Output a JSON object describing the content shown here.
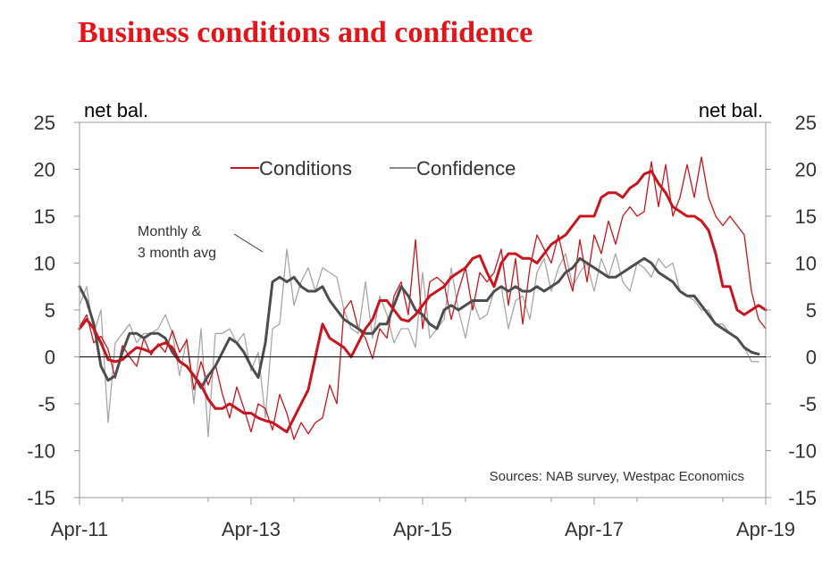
{
  "chart_data": {
    "type": "line",
    "title": "Business conditions and confidence",
    "ylabel_left": "net bal.",
    "ylabel_right": "net bal.",
    "ylim": [
      -15,
      25
    ],
    "yticks": [
      -15,
      -10,
      -5,
      0,
      5,
      10,
      15,
      20,
      25
    ],
    "xlim": [
      0,
      96
    ],
    "x_ticks": [
      {
        "label": "Apr-11",
        "x": 0
      },
      {
        "label": "Apr-13",
        "x": 24
      },
      {
        "label": "Apr-15",
        "x": 48
      },
      {
        "label": "Apr-17",
        "x": 72
      },
      {
        "label": "Apr-19",
        "x": 96
      }
    ],
    "legend": [
      "Conditions",
      "Confidence"
    ],
    "annotation": "Monthly & 3 month avg",
    "annotation_lines": [
      "Monthly &",
      "3 month avg"
    ],
    "source": "Sources: NAB survey, Westpac Economics",
    "colors": {
      "title": "#e3151a",
      "conditions": "#c8141c",
      "conditions_monthly": "#c8141c",
      "confidence": "#4d4d4d",
      "confidence_monthly": "#a6a6a6",
      "axis": "#888888",
      "text": "#333333"
    },
    "series": [
      {
        "name": "Conditions (monthly)",
        "color": "#c8141c",
        "values": [
          3.2,
          4.5,
          1.5,
          2.2,
          0.8,
          -2.3,
          1.2,
          0.0,
          -1.0,
          2.0,
          0.2,
          1.4,
          0.5,
          2.8,
          0.5,
          1.8,
          -3.5,
          -0.5,
          -3.0,
          -0.8,
          -4.0,
          -6.5,
          -3.2,
          -5.5,
          -8.0,
          -5.0,
          -5.5,
          -7.8,
          -4.0,
          -6.0,
          -8.8,
          -7.0,
          -8.2,
          -7.0,
          -6.5,
          -3.0,
          -5.0,
          5.0,
          6.0,
          3.0,
          2.0,
          -0.2,
          3.0,
          2.0,
          6.5,
          8.0,
          4.5,
          12.5,
          3.0,
          8.0,
          8.5,
          7.8,
          4.0,
          7.0,
          9.5,
          5.0,
          9.0,
          8.0,
          9.0,
          11.5,
          5.5,
          10.5,
          3.5,
          9.5,
          13.0,
          11.5,
          10.0,
          13.0,
          9.5,
          7.0,
          12.5,
          8.0,
          13.0,
          11.0,
          14.5,
          12.0,
          15.0,
          16.0,
          15.0,
          15.5,
          20.8,
          16.0,
          20.5,
          15.0,
          17.0,
          20.5,
          17.0,
          21.3,
          17.0,
          15.0,
          14.0,
          15.0,
          14.0,
          13.0,
          7.0,
          4.0,
          3.0
        ]
      },
      {
        "name": "Conditions",
        "color": "#c8141c",
        "values": [
          3.0,
          4.0,
          3.0,
          1.5,
          -0.3,
          -0.5,
          -0.3,
          0.4,
          1.0,
          0.8,
          0.5,
          1.2,
          1.5,
          1.0,
          -0.5,
          -1.0,
          -2.0,
          -3.0,
          -4.5,
          -5.5,
          -5.5,
          -5.0,
          -5.5,
          -6.0,
          -6.0,
          -6.5,
          -6.8,
          -7.0,
          -7.5,
          -8.0,
          -6.5,
          -5.0,
          -3.5,
          0.0,
          3.5,
          2.0,
          1.5,
          1.0,
          0.0,
          1.5,
          3.0,
          4.0,
          6.0,
          6.0,
          5.0,
          4.0,
          3.8,
          4.5,
          5.5,
          6.5,
          7.0,
          7.5,
          8.5,
          9.0,
          9.5,
          10.5,
          10.8,
          9.0,
          7.5,
          10.0,
          11.0,
          11.0,
          10.5,
          10.5,
          10.0,
          11.0,
          12.0,
          12.5,
          13.0,
          14.0,
          15.0,
          15.0,
          15.0,
          17.0,
          17.5,
          17.5,
          17.0,
          18.0,
          18.5,
          19.5,
          19.8,
          18.5,
          17.5,
          16.0,
          15.5,
          15.0,
          15.0,
          14.5,
          13.5,
          11.0,
          7.5,
          7.5,
          5.0,
          4.5,
          5.0,
          5.5,
          5.0
        ]
      },
      {
        "name": "Confidence (monthly)",
        "color": "#a6a6a6",
        "values": [
          5.5,
          7.5,
          2.5,
          5.0,
          -7.0,
          1.5,
          2.5,
          3.5,
          1.5,
          2.5,
          2.5,
          3.0,
          4.5,
          2.5,
          -2.0,
          2.0,
          -5.0,
          3.0,
          -8.5,
          2.5,
          2.5,
          3.0,
          1.5,
          2.5,
          -1.5,
          0.5,
          -6.5,
          3.0,
          3.5,
          11.5,
          5.5,
          8.0,
          9.5,
          7.0,
          9.5,
          9.0,
          8.5,
          5.0,
          3.0,
          2.5,
          8.0,
          2.0,
          6.5,
          4.5,
          1.5,
          3.0,
          3.0,
          1.0,
          9.0,
          2.0,
          3.0,
          4.0,
          9.5,
          5.0,
          2.0,
          6.0,
          4.0,
          4.5,
          7.0,
          7.5,
          3.0,
          6.0,
          6.5,
          4.0,
          9.0,
          10.5,
          7.0,
          9.5,
          11.0,
          7.5,
          9.0,
          10.0,
          7.0,
          10.5,
          8.5,
          11.0,
          8.0,
          7.0,
          10.0,
          9.5,
          8.5,
          10.5,
          9.5,
          10.0,
          7.0,
          6.5,
          6.0,
          5.0,
          5.0,
          3.5,
          3.5,
          2.5,
          2.0,
          1.0,
          -0.5,
          -0.5
        ]
      },
      {
        "name": "Confidence",
        "color": "#4d4d4d",
        "values": [
          7.5,
          6.0,
          3.5,
          -1.0,
          -2.5,
          -2.0,
          0.5,
          2.5,
          2.5,
          2.0,
          2.5,
          2.5,
          2.0,
          0.5,
          -0.5,
          -1.0,
          -2.0,
          -3.3,
          -2.0,
          -1.0,
          0.5,
          2.0,
          1.5,
          0.5,
          -1.0,
          -2.2,
          1.5,
          8.0,
          8.5,
          8.0,
          8.5,
          7.5,
          7.0,
          7.0,
          7.5,
          6.0,
          5.0,
          4.0,
          3.5,
          3.0,
          2.5,
          2.5,
          3.5,
          3.5,
          5.5,
          7.5,
          6.5,
          5.0,
          4.5,
          3.5,
          3.0,
          5.0,
          5.5,
          5.0,
          5.5,
          6.0,
          6.0,
          6.0,
          7.0,
          7.5,
          7.0,
          7.5,
          7.0,
          7.0,
          7.5,
          7.0,
          7.5,
          8.0,
          9.0,
          9.5,
          10.5,
          10.0,
          9.5,
          9.0,
          8.5,
          8.5,
          9.0,
          9.5,
          10.0,
          10.5,
          10.0,
          9.0,
          8.5,
          8.0,
          7.0,
          6.5,
          6.5,
          5.5,
          4.5,
          3.5,
          3.0,
          2.5,
          2.0,
          1.0,
          0.5,
          0.3
        ]
      }
    ]
  }
}
